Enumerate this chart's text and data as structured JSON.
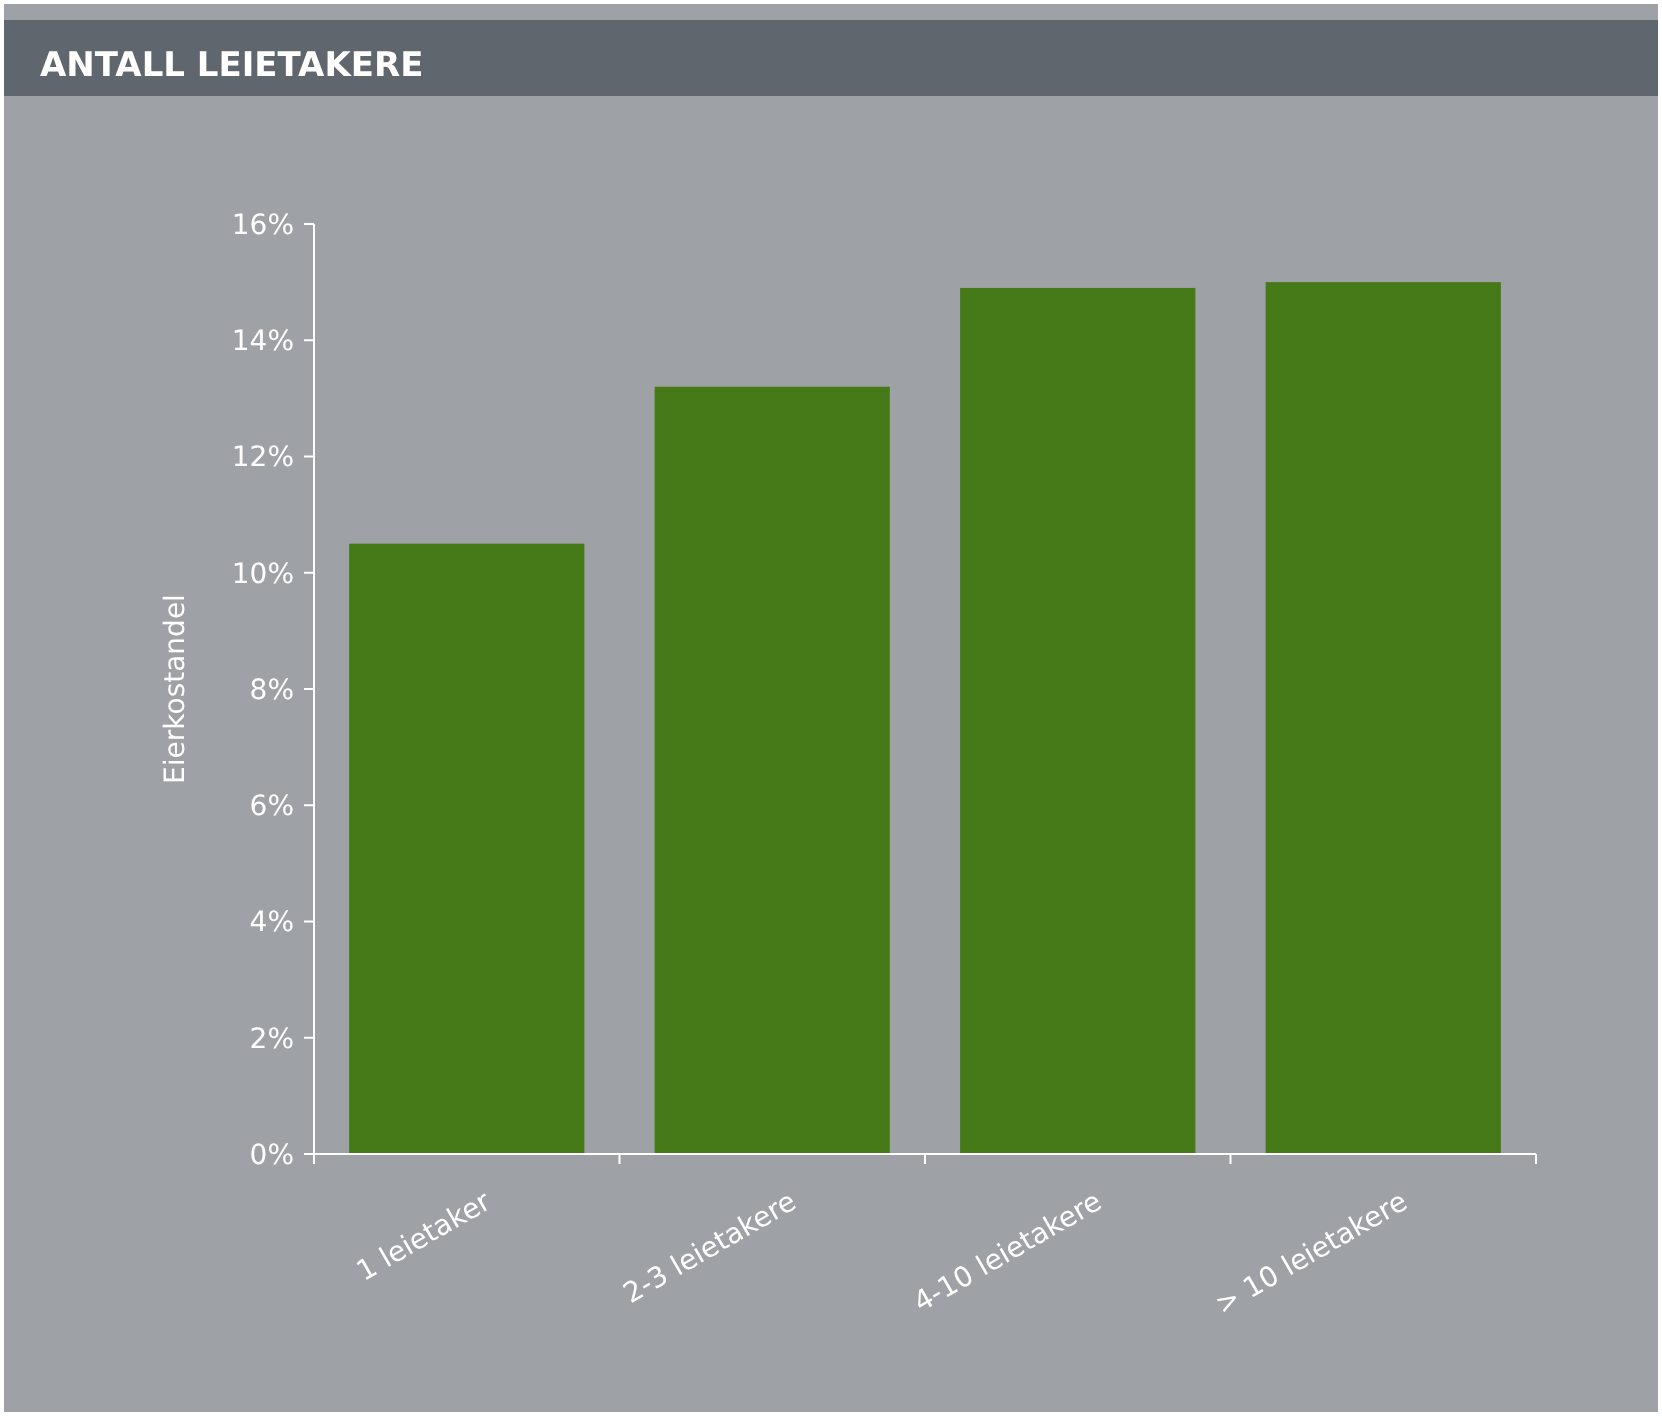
{
  "chart_data": {
    "type": "bar",
    "title": "ANTALL LEIETAKERE",
    "ylabel": "Eierkostandel",
    "categories": [
      "1 leietaker",
      "2-3 leietakere",
      "4-10 leietakere",
      "> 10 leietakere"
    ],
    "values": [
      10.5,
      13.2,
      14.9,
      15.0
    ],
    "color": "#467a19",
    "ylim": [
      0,
      16
    ],
    "yticks": [
      {
        "value": 0,
        "label": "0%"
      },
      {
        "value": 2,
        "label": "2%"
      },
      {
        "value": 4,
        "label": "4%"
      },
      {
        "value": 6,
        "label": "6%"
      },
      {
        "value": 8,
        "label": "8%"
      },
      {
        "value": 10,
        "label": "10%"
      },
      {
        "value": 12,
        "label": "12%"
      },
      {
        "value": 14,
        "label": "14%"
      },
      {
        "value": 16,
        "label": "16%"
      }
    ],
    "grid": false
  }
}
